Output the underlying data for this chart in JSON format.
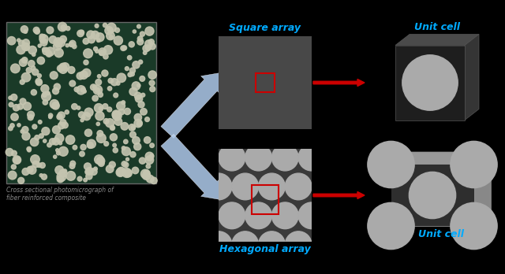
{
  "background_color": "#000000",
  "title_square": "Square array",
  "title_hex": "Hexagonal array",
  "title_uc_top": "Unit cell",
  "title_uc_bot": "Unit cell",
  "caption_line1": "Cross sectional photomicrograph of",
  "caption_line2": "fiber reinforced composite",
  "label_color": "#00aaff",
  "caption_color": "#888888",
  "sq_bg": "#484848",
  "hex_bg": "#3a3a3a",
  "fiber_color_sq": "#bbbbbb",
  "fiber_color_hex": "#aaaaaa",
  "highlight_box_color": "#cc0000",
  "red_arrow_color": "#cc0000",
  "big_arrow_color": "#b0ccee",
  "uc_front_dark": "#252525",
  "uc_top_color": "#555555",
  "uc_right_color": "#404040",
  "uc_fiber_color": "#aaaaaa",
  "uc_hex_light": "#aaaaaa",
  "img_bg": "#1a3a28",
  "img_fiber": "#c5c5b0"
}
